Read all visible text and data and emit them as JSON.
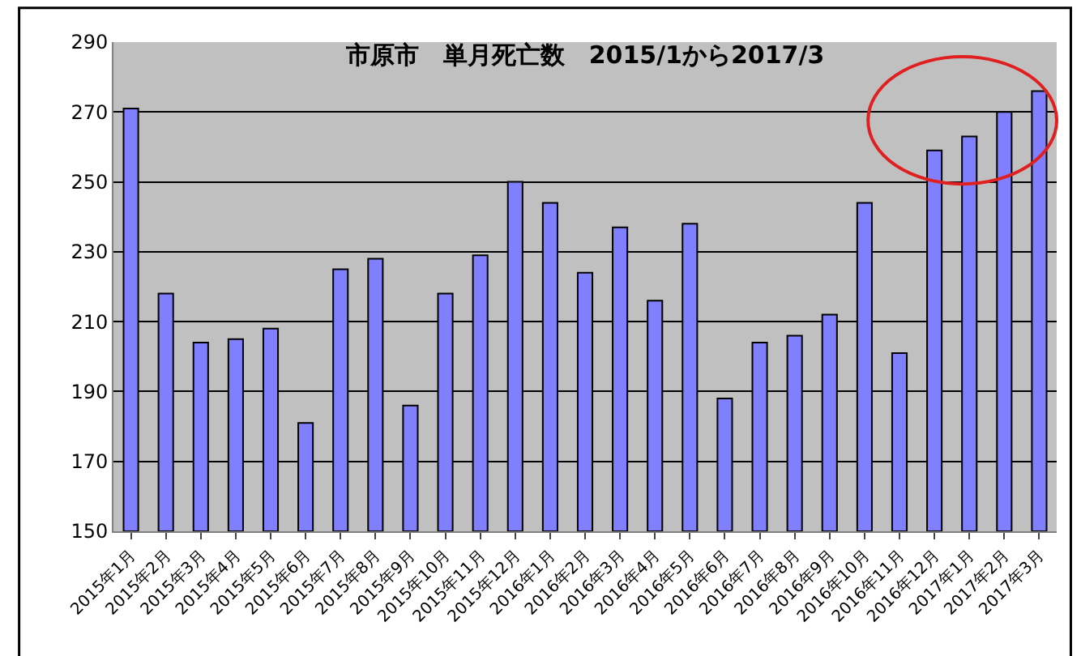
{
  "chart_data": {
    "type": "bar",
    "title": "市原市　単月死亡数　2015/1から2017/3",
    "categories": [
      "2015年1月",
      "2015年2月",
      "2015年3月",
      "2015年4月",
      "2015年5月",
      "2015年6月",
      "2015年7月",
      "2015年8月",
      "2015年9月",
      "2015年10月",
      "2015年11月",
      "2015年12月",
      "2016年1月",
      "2016年2月",
      "2016年3月",
      "2016年4月",
      "2016年5月",
      "2016年6月",
      "2016年7月",
      "2016年8月",
      "2016年9月",
      "2016年10月",
      "2016年11月",
      "2016年12月",
      "2017年1月",
      "2017年2月",
      "2017年3月"
    ],
    "values": [
      271,
      218,
      204,
      205,
      208,
      181,
      225,
      228,
      186,
      218,
      229,
      250,
      244,
      224,
      237,
      216,
      238,
      188,
      204,
      206,
      212,
      244,
      201,
      259,
      263,
      270,
      276
    ],
    "color": "#8080ff",
    "ylim": [
      150,
      290
    ],
    "yticks": [
      150,
      170,
      190,
      210,
      230,
      250,
      270,
      290
    ],
    "grid": "y",
    "legend": false
  }
}
